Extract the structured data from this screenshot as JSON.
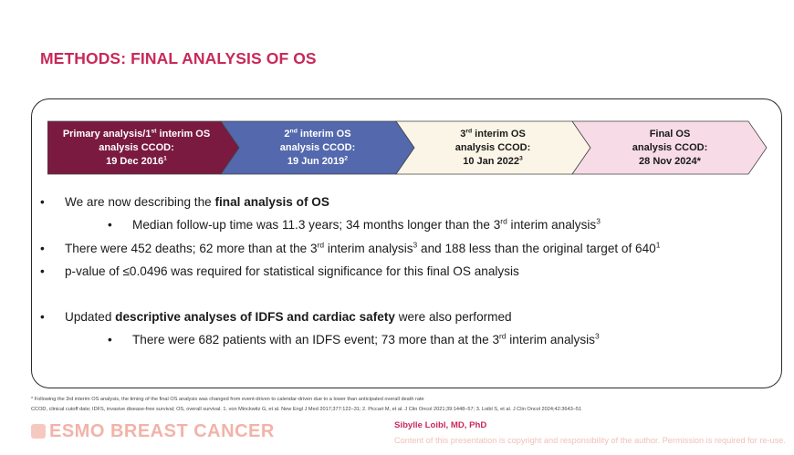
{
  "title": "METHODS: FINAL ANALYSIS OF OS",
  "timeline": [
    {
      "line1_pre": "Primary analysis/1",
      "line1_sup": "st",
      "line1_post": " interim OS",
      "line2": "analysis CCOD:",
      "line3_pre": "19 Dec 2016",
      "line3_sup": "1",
      "fill": "#7a1a40"
    },
    {
      "line1_pre": "2",
      "line1_sup": "nd",
      "line1_post": " interim OS",
      "line2": "analysis CCOD:",
      "line3_pre": "19 Jun 2019",
      "line3_sup": "2",
      "fill": "#5368ad"
    },
    {
      "line1_pre": "3",
      "line1_sup": "rd",
      "line1_post": " interim OS",
      "line2": "analysis CCOD:",
      "line3_pre": "10 Jan 2022",
      "line3_sup": "3",
      "fill": "#faf5e6"
    },
    {
      "line1_pre": "Final OS",
      "line1_sup": "",
      "line1_post": "",
      "line2": "analysis CCOD:",
      "line3_pre": "28 Nov 2024*",
      "line3_sup": "",
      "fill": "#f7dbe6"
    }
  ],
  "bullets": {
    "b1_pre": "We are now describing the ",
    "b1_bold": "final analysis of OS",
    "b1a_pre": "Median follow-up time was 11.3 years; 34 months longer than the 3",
    "b1a_sup1": "rd",
    "b1a_post": " interim analysis",
    "b1a_sup2": "3",
    "b2_pre": "There were 452 deaths; 62 more than at the 3",
    "b2_sup1": "rd",
    "b2_mid": " interim analysis",
    "b2_sup2": "3",
    "b2_post": " and 188 less than the original target of 640",
    "b2_sup3": "1",
    "b3": "p-value of ≤0.0496 was required for statistical significance for this final OS analysis",
    "b4_pre": "Updated ",
    "b4_bold": "descriptive analyses of IDFS and cardiac safety",
    "b4_post": " were also performed",
    "b4a_pre": "There were 682 patients with an IDFS event; 73 more than at the 3",
    "b4a_sup1": "rd",
    "b4a_post": " interim analysis",
    "b4a_sup2": "3",
    "bullet_char": "•"
  },
  "footnotes": {
    "line1": "* Following the 3rd interim OS analysis, the timing of the final OS analysis was changed from event-driven to calendar-driven due to a lower than anticipated overall death rate",
    "line2": "CCOD, clinical cutoff date; IDFS, invasive disease-free survival; OS, overall survival. 1. von Minckwitz G, et al. New Engl J Med 2017;377:122–31; 2. Piccart M, et al. J Clin Oncol 2021;39:1448–57; 3. Loibl S, et al. J Clin Oncol 2024;42:3643–51"
  },
  "footer": {
    "logo": "ESMO BREAST CANCER",
    "presenter": "Sibylle Loibl, MD, PhD",
    "copyright": "Content of this presentation is copyright and responsibility of the author. Permission is required for re-use."
  }
}
